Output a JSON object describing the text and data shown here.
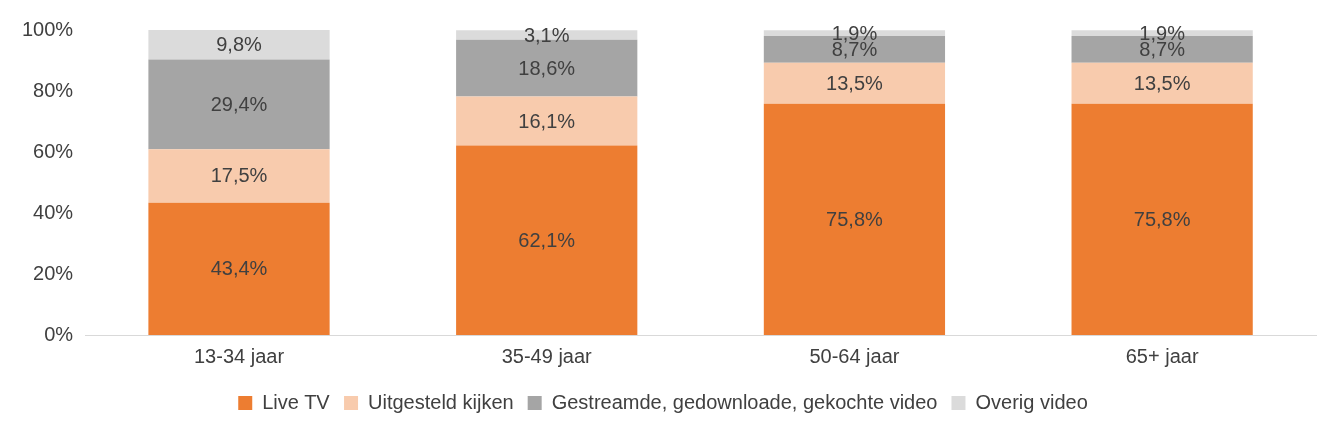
{
  "chart_data": {
    "type": "bar",
    "stacked": true,
    "categories": [
      "13-34 jaar",
      "35-49 jaar",
      "50-64 jaar",
      "65+ jaar"
    ],
    "series": [
      {
        "name": "Live TV",
        "color": "#ed7d31",
        "values": [
          43.4,
          62.1,
          75.8,
          75.8
        ],
        "value_labels": [
          "43,4%",
          "62,1%",
          "75,8%",
          "75,8%"
        ]
      },
      {
        "name": "Uitgesteld kijken",
        "color": "#f8cbad",
        "values": [
          17.5,
          16.1,
          13.5,
          13.5
        ],
        "value_labels": [
          "17,5%",
          "16,1%",
          "13,5%",
          "13,5%"
        ]
      },
      {
        "name": "Gestreamde, gedownloade, gekochte video",
        "color": "#a5a5a5",
        "values": [
          29.4,
          18.6,
          8.7,
          8.7
        ],
        "value_labels": [
          "29,4%",
          "18,6%",
          "8,7%",
          "8,7%"
        ]
      },
      {
        "name": "Overig video",
        "color": "#dbdbdb",
        "values": [
          9.8,
          3.1,
          1.9,
          1.9
        ],
        "value_labels": [
          "9,8%",
          "3,1%",
          "1,9%",
          "1,9%"
        ]
      }
    ],
    "ylim": [
      0,
      100
    ],
    "yticks": [
      {
        "value": 0,
        "label": "0%"
      },
      {
        "value": 20,
        "label": "20%"
      },
      {
        "value": 40,
        "label": "40%"
      },
      {
        "value": 60,
        "label": "60%"
      },
      {
        "value": 80,
        "label": "80%"
      },
      {
        "value": 100,
        "label": "100%"
      }
    ],
    "grid": false,
    "legend": "bottom"
  }
}
